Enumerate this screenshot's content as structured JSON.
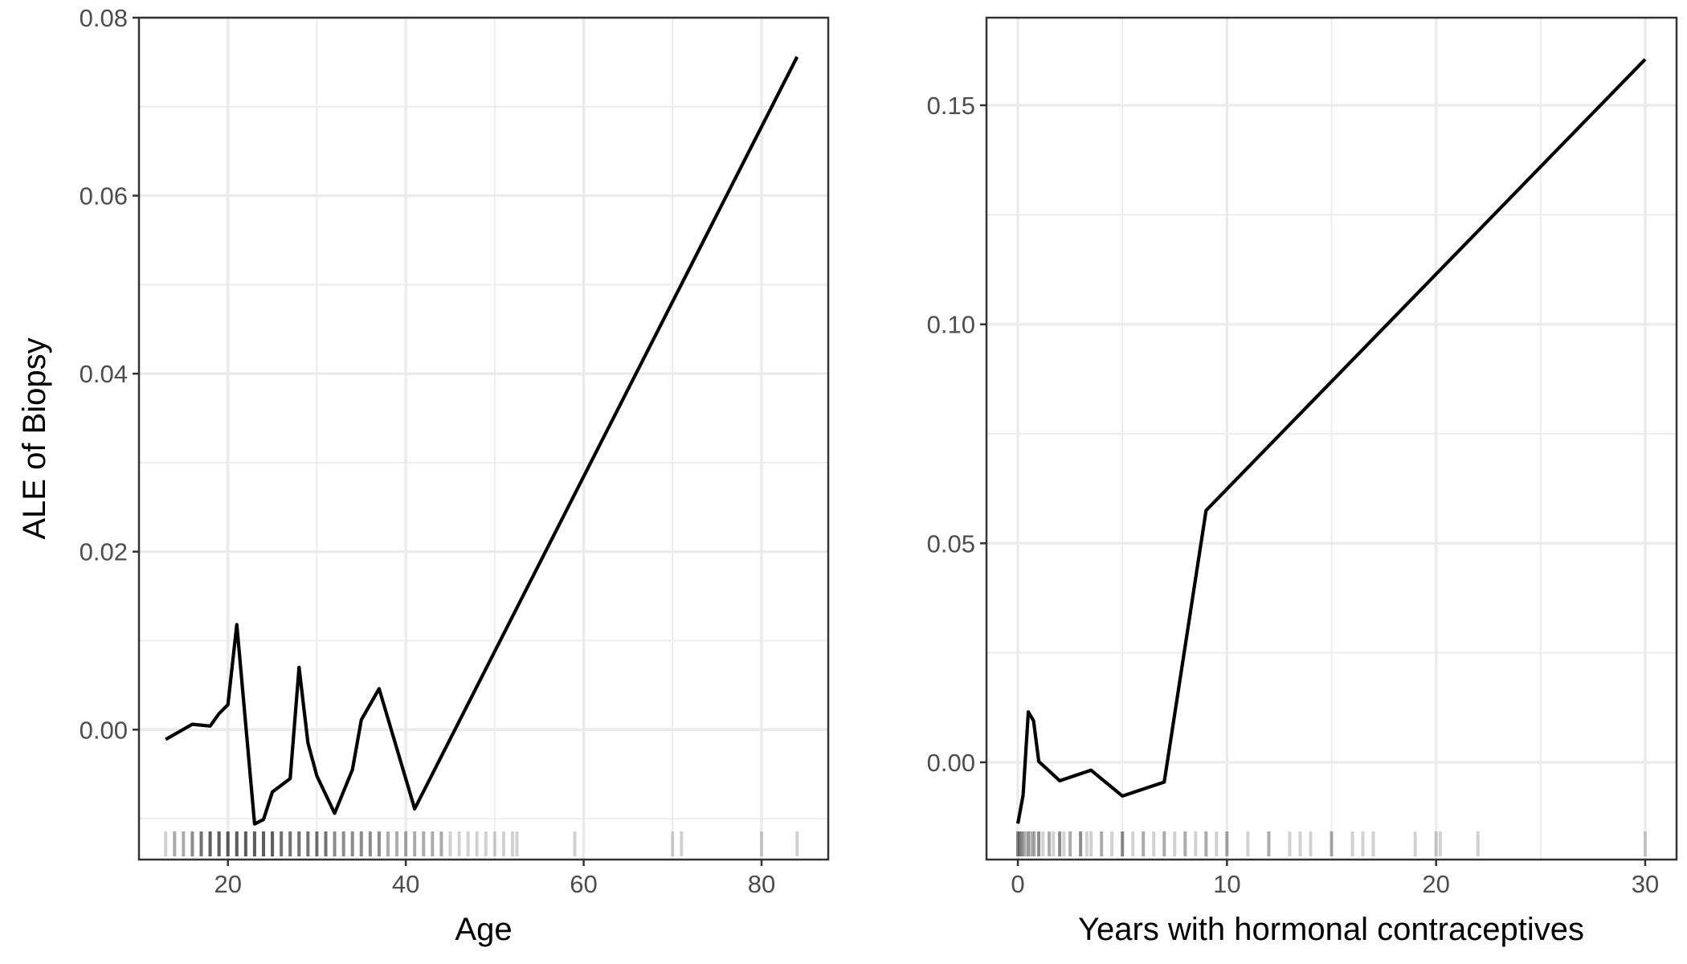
{
  "chart_data": [
    {
      "type": "line",
      "ylabel": "ALE of Biopsy",
      "xlabel": "Age",
      "xlim": [
        10,
        87.5
      ],
      "ylim": [
        -0.0146,
        0.08
      ],
      "x_ticks": [
        20,
        40,
        60,
        80
      ],
      "x_tick_labels": [
        "20",
        "40",
        "60",
        "80"
      ],
      "y_ticks": [
        0.0,
        0.02,
        0.04,
        0.06,
        0.08
      ],
      "y_tick_labels": [
        "0.00",
        "0.02",
        "0.04",
        "0.06",
        "0.08"
      ],
      "grid": true,
      "series": [
        {
          "name": "ALE",
          "x": [
            13,
            16,
            18,
            19,
            20,
            21,
            23,
            24,
            25,
            27,
            28,
            29,
            30,
            32,
            34,
            35,
            37,
            41,
            84
          ],
          "y": [
            -0.0011,
            0.0006,
            0.0004,
            0.0018,
            0.0028,
            0.0118,
            -0.0106,
            -0.0101,
            -0.007,
            -0.0055,
            0.007,
            -0.0015,
            -0.0052,
            -0.0094,
            -0.0045,
            0.0011,
            0.0046,
            -0.0089,
            0.0756
          ]
        }
      ],
      "rug": [
        13,
        14,
        14,
        15,
        15,
        16,
        16,
        16,
        17,
        17,
        17,
        17,
        18,
        18,
        18,
        18,
        18,
        19,
        19,
        19,
        19,
        19,
        20,
        20,
        20,
        20,
        20,
        21,
        21,
        21,
        21,
        21,
        22,
        22,
        22,
        22,
        22,
        23,
        23,
        23,
        23,
        23,
        24,
        24,
        24,
        24,
        24,
        25,
        25,
        25,
        25,
        25,
        26,
        26,
        26,
        26,
        27,
        27,
        27,
        27,
        28,
        28,
        28,
        28,
        29,
        29,
        29,
        29,
        30,
        30,
        30,
        30,
        31,
        31,
        31,
        31,
        32,
        32,
        32,
        33,
        33,
        33,
        34,
        34,
        34,
        35,
        35,
        35,
        36,
        36,
        36,
        37,
        37,
        37,
        38,
        38,
        39,
        39,
        40,
        40,
        41,
        41,
        42,
        42,
        43,
        43,
        44,
        44,
        45,
        46,
        47,
        48,
        49,
        50,
        51,
        52,
        52.5,
        59,
        70,
        71,
        80,
        84
      ]
    },
    {
      "type": "line",
      "ylabel": "",
      "xlabel": "Years with hormonal contraceptives",
      "xlim": [
        -1.5,
        31.5
      ],
      "ylim": [
        -0.0222,
        0.17
      ],
      "x_ticks": [
        0,
        10,
        20,
        30
      ],
      "x_tick_labels": [
        "0",
        "10",
        "20",
        "30"
      ],
      "y_ticks": [
        0.0,
        0.05,
        0.1,
        0.15
      ],
      "y_tick_labels": [
        "0.00",
        "0.05",
        "0.10",
        "0.15"
      ],
      "grid": true,
      "series": [
        {
          "name": "ALE",
          "x": [
            0,
            0.25,
            0.5,
            0.75,
            1,
            2,
            3.5,
            5,
            7,
            9,
            30
          ],
          "y": [
            -0.014,
            -0.0075,
            0.0115,
            0.0095,
            0.0002,
            -0.0042,
            -0.0018,
            -0.0077,
            -0.0045,
            0.0575,
            0.1605
          ]
        }
      ],
      "rug": [
        0,
        0,
        0,
        0.08,
        0.1,
        0.15,
        0.2,
        0.25,
        0.3,
        0.4,
        0.5,
        0.5,
        0.6,
        0.7,
        0.75,
        0.8,
        1,
        1,
        1,
        1.2,
        1.5,
        1.5,
        1.7,
        2,
        2,
        2,
        2.2,
        2.5,
        2.5,
        3,
        3,
        3,
        3.3,
        3.5,
        4,
        4,
        4.5,
        5,
        5,
        5,
        5.5,
        6,
        6,
        6.5,
        7,
        7,
        7.5,
        8,
        8,
        8.5,
        9,
        9,
        9.5,
        10,
        10,
        11,
        12,
        12,
        13,
        13.5,
        14,
        15,
        15,
        16,
        16.5,
        17,
        19,
        20,
        20.2,
        22,
        30
      ]
    }
  ]
}
